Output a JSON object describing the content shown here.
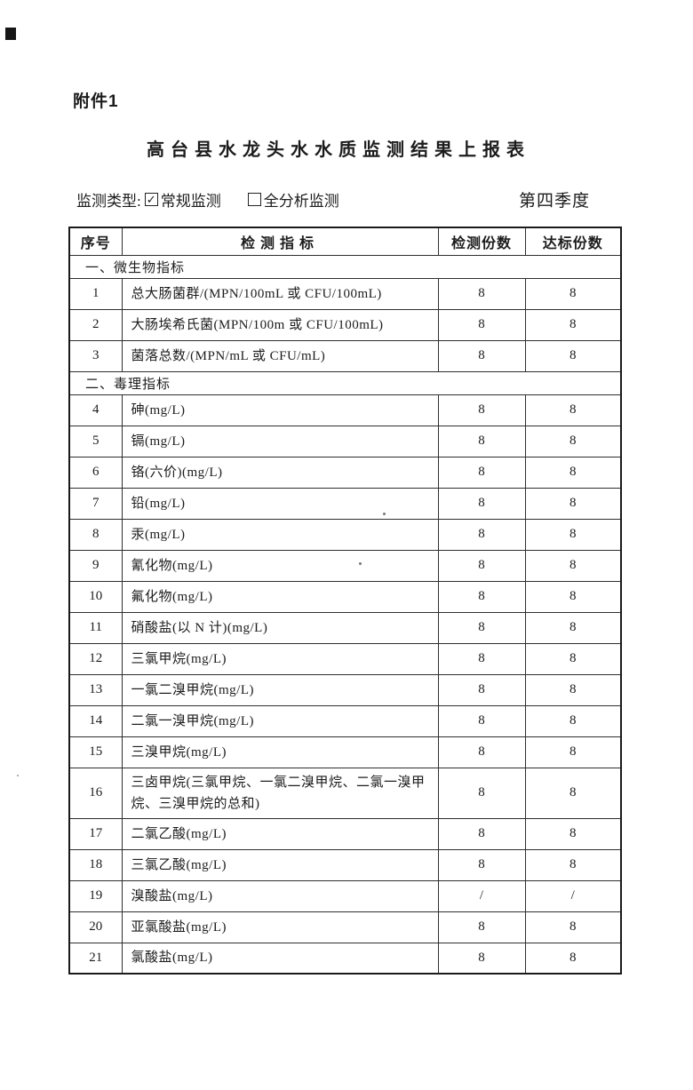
{
  "document": {
    "attachment_label": "附件1",
    "title": "高台县水龙头水水质监测结果上报表",
    "monitoring_type": {
      "label": "监测类型:",
      "check_glyph": "✓",
      "options": [
        {
          "label": "常规监测",
          "checked": true
        },
        {
          "label": "全分析监测",
          "checked": false
        }
      ]
    },
    "period": "第四季度"
  },
  "table": {
    "headers": [
      "序号",
      "检测指标",
      "检测份数",
      "达标份数"
    ],
    "sections": [
      {
        "title": "一、微生物指标",
        "rows": [
          {
            "no": "1",
            "indicator": "总大肠菌群/(MPN/100mL 或 CFU/100mL)",
            "tested": "8",
            "passed": "8"
          },
          {
            "no": "2",
            "indicator": "大肠埃希氏菌(MPN/100m 或 CFU/100mL)",
            "tested": "8",
            "passed": "8"
          },
          {
            "no": "3",
            "indicator": "菌落总数/(MPN/mL 或 CFU/mL)",
            "tested": "8",
            "passed": "8"
          }
        ]
      },
      {
        "title": "二、毒理指标",
        "rows": [
          {
            "no": "4",
            "indicator": "砷(mg/L)",
            "tested": "8",
            "passed": "8"
          },
          {
            "no": "5",
            "indicator": "镉(mg/L)",
            "tested": "8",
            "passed": "8"
          },
          {
            "no": "6",
            "indicator": "铬(六价)(mg/L)",
            "tested": "8",
            "passed": "8"
          },
          {
            "no": "7",
            "indicator": "铅(mg/L)",
            "tested": "8",
            "passed": "8"
          },
          {
            "no": "8",
            "indicator": "汞(mg/L)",
            "tested": "8",
            "passed": "8"
          },
          {
            "no": "9",
            "indicator": "氰化物(mg/L)",
            "tested": "8",
            "passed": "8"
          },
          {
            "no": "10",
            "indicator": "氟化物(mg/L)",
            "tested": "8",
            "passed": "8"
          },
          {
            "no": "11",
            "indicator": "硝酸盐(以 N 计)(mg/L)",
            "tested": "8",
            "passed": "8"
          },
          {
            "no": "12",
            "indicator": "三氯甲烷(mg/L)",
            "tested": "8",
            "passed": "8"
          },
          {
            "no": "13",
            "indicator": "一氯二溴甲烷(mg/L)",
            "tested": "8",
            "passed": "8"
          },
          {
            "no": "14",
            "indicator": "二氯一溴甲烷(mg/L)",
            "tested": "8",
            "passed": "8"
          },
          {
            "no": "15",
            "indicator": "三溴甲烷(mg/L)",
            "tested": "8",
            "passed": "8"
          },
          {
            "no": "16",
            "indicator": "三卤甲烷(三氯甲烷、一氯二溴甲烷、二氯一溴甲烷、三溴甲烷的总和)",
            "tested": "8",
            "passed": "8"
          },
          {
            "no": "17",
            "indicator": "二氯乙酸(mg/L)",
            "tested": "8",
            "passed": "8"
          },
          {
            "no": "18",
            "indicator": "三氯乙酸(mg/L)",
            "tested": "8",
            "passed": "8"
          },
          {
            "no": "19",
            "indicator": "溴酸盐(mg/L)",
            "tested": "/",
            "passed": "/"
          },
          {
            "no": "20",
            "indicator": "亚氯酸盐(mg/L)",
            "tested": "8",
            "passed": "8"
          },
          {
            "no": "21",
            "indicator": "氯酸盐(mg/L)",
            "tested": "8",
            "passed": "8"
          }
        ]
      }
    ]
  }
}
